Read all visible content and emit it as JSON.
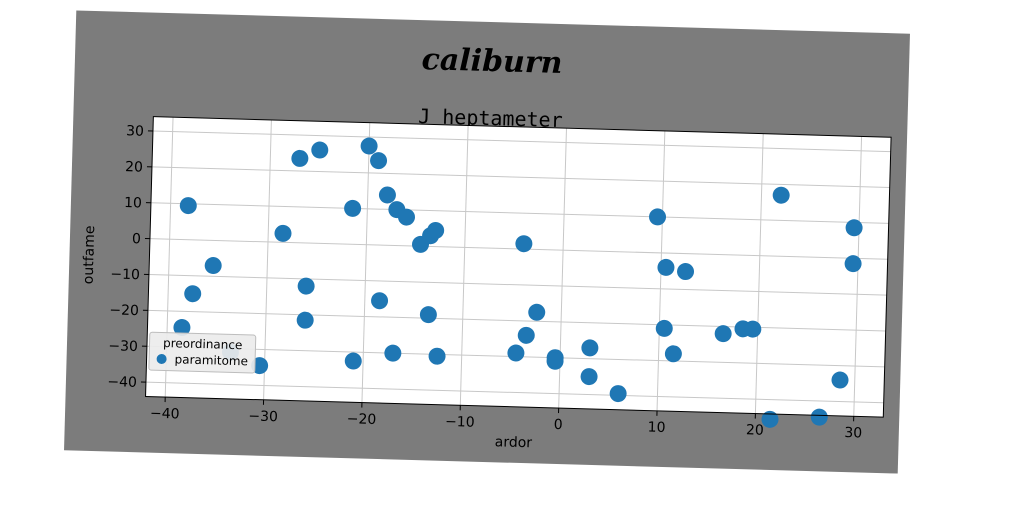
{
  "figure_title": "caliburn",
  "colors": {
    "figure_bg": "#7c7c7c",
    "axes_bg": "#ffffff",
    "grid": "#c8c8c8",
    "marker": "#1f77b4"
  },
  "chart_data": {
    "type": "scatter",
    "title": "J heptameter",
    "xlabel": "ardor",
    "ylabel": "outfame",
    "xlim": [
      -42,
      33
    ],
    "ylim": [
      -44,
      34
    ],
    "xticks": [
      -40,
      -30,
      -20,
      -10,
      0,
      10,
      20,
      30
    ],
    "yticks": [
      -40,
      -30,
      -20,
      -10,
      0,
      10,
      20,
      30
    ],
    "grid": true,
    "legend": {
      "title": "preordinance",
      "position": "lower-left"
    },
    "series": [
      {
        "name": "paramitome",
        "color": "#1f77b4",
        "points": [
          [
            -38.2,
            9.5
          ],
          [
            -37.5,
            -15
          ],
          [
            -38.5,
            -24.5
          ],
          [
            -35.5,
            -7
          ],
          [
            -33.5,
            -31
          ],
          [
            -30.5,
            -34.5
          ],
          [
            -28.5,
            2.5
          ],
          [
            -27.0,
            23.5
          ],
          [
            -26.0,
            -12
          ],
          [
            -26.0,
            -21.5
          ],
          [
            -25.0,
            26
          ],
          [
            -21.5,
            10
          ],
          [
            -21.0,
            -32.5
          ],
          [
            -20.0,
            27.5
          ],
          [
            -19.0,
            23.5
          ],
          [
            -18.5,
            -15.5
          ],
          [
            -18.0,
            14
          ],
          [
            -17.0,
            10
          ],
          [
            -17.0,
            -30
          ],
          [
            -16.0,
            8
          ],
          [
            -14.5,
            0.5
          ],
          [
            -13.5,
            3
          ],
          [
            -13.0,
            4.5
          ],
          [
            -13.5,
            -19
          ],
          [
            -12.5,
            -30.5
          ],
          [
            -4.0,
            1.5
          ],
          [
            -2.5,
            -17.5
          ],
          [
            -3.5,
            -24
          ],
          [
            -4.5,
            -29
          ],
          [
            -0.5,
            -30
          ],
          [
            -0.5,
            -31
          ],
          [
            3.0,
            -27
          ],
          [
            3.0,
            -35
          ],
          [
            6.0,
            -39.5
          ],
          [
            9.5,
            10
          ],
          [
            10.5,
            -4
          ],
          [
            10.5,
            -21
          ],
          [
            11.5,
            -28
          ],
          [
            12.5,
            -5
          ],
          [
            16.5,
            -22
          ],
          [
            18.5,
            -20.5
          ],
          [
            19.5,
            -20.5
          ],
          [
            21.5,
            -45.5
          ],
          [
            22.0,
            17
          ],
          [
            26.5,
            -44.5
          ],
          [
            28.5,
            -34
          ],
          [
            29.5,
            8.5
          ],
          [
            29.5,
            -1.5
          ]
        ]
      }
    ]
  }
}
